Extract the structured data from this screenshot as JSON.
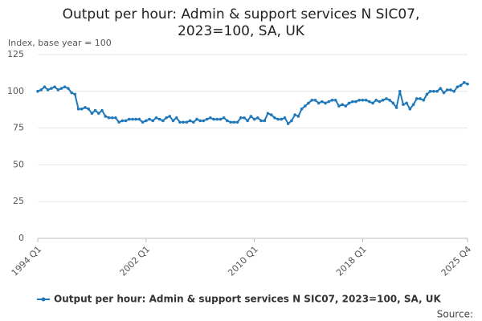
{
  "chart_data": {
    "type": "line",
    "title": "Output per hour: Admin & support services N SIC07, 2023=100, SA, UK",
    "y_label": "Index, base year = 100",
    "source": "Source:",
    "categories": [
      "1994 Q1",
      null,
      null,
      null,
      null,
      null,
      null,
      null,
      null,
      null,
      null,
      null,
      null,
      null,
      null,
      null,
      null,
      null,
      null,
      null,
      null,
      null,
      null,
      null,
      null,
      null,
      null,
      null,
      null,
      null,
      null,
      null,
      "2002 Q1",
      null,
      null,
      null,
      null,
      null,
      null,
      null,
      null,
      null,
      null,
      null,
      null,
      null,
      null,
      null,
      null,
      null,
      null,
      null,
      null,
      null,
      null,
      null,
      null,
      null,
      null,
      null,
      null,
      null,
      null,
      null,
      "2010 Q1",
      null,
      null,
      null,
      null,
      null,
      null,
      null,
      null,
      null,
      null,
      null,
      null,
      null,
      null,
      null,
      null,
      null,
      null,
      null,
      null,
      null,
      null,
      null,
      null,
      null,
      null,
      null,
      null,
      null,
      null,
      null,
      "2018 Q1",
      null,
      null,
      null,
      null,
      null,
      null,
      null,
      null,
      null,
      null,
      null,
      null,
      null,
      null,
      null,
      null,
      null,
      null,
      null,
      null,
      null,
      null,
      null,
      null,
      null,
      null,
      null,
      null,
      null,
      null,
      "2025 Q4"
    ],
    "series": [
      {
        "name": "Output per hour: Admin & support services N SIC07, 2023=100, SA, UK",
        "color": "#1f78b9",
        "values": [
          100,
          101,
          103,
          101,
          102,
          103,
          101,
          102,
          103,
          102,
          99,
          98,
          88,
          88,
          89,
          88,
          85,
          87,
          85,
          87,
          83,
          82,
          82,
          82,
          79,
          80,
          80,
          81,
          81,
          81,
          81,
          79,
          80,
          81,
          80,
          82,
          81,
          80,
          82,
          83,
          80,
          82,
          79,
          79,
          79,
          80,
          79,
          81,
          80,
          80,
          81,
          82,
          81,
          81,
          81,
          82,
          80,
          79,
          79,
          79,
          82,
          82,
          80,
          83,
          81,
          82,
          80,
          80,
          85,
          84,
          82,
          81,
          81,
          82,
          78,
          80,
          84,
          83,
          88,
          90,
          92,
          94,
          94,
          92,
          93,
          92,
          93,
          94,
          94,
          90,
          91,
          90,
          92,
          93,
          93,
          94,
          94,
          94,
          93,
          92,
          94,
          93,
          94,
          95,
          94,
          92,
          89,
          100,
          91,
          92,
          88,
          91,
          95,
          95,
          94,
          98,
          100,
          100,
          100,
          102,
          99,
          101,
          101,
          100,
          103,
          104,
          106,
          105
        ]
      }
    ],
    "ylim": [
      0,
      125
    ],
    "yticks": [
      0,
      25,
      50,
      75,
      100,
      125
    ],
    "grid": true
  }
}
